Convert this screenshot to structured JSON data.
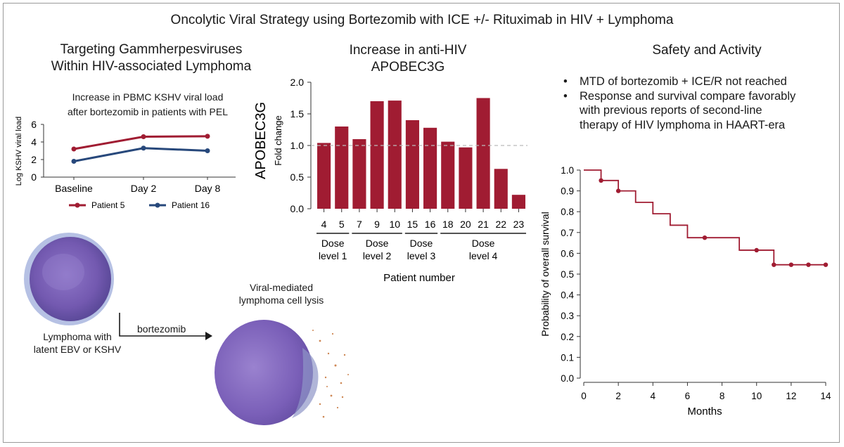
{
  "title": "Oncolytic Viral Strategy using Bortezomib with ICE +/- Rituximab in HIV + Lymphoma",
  "left": {
    "heading_line1": "Targeting Gammherpesviruses",
    "heading_line2": "Within HIV-associated Lymphoma",
    "chart_title_line1": "Increase in PBMC KSHV viral load",
    "chart_title_line2": "after bortezomib in patients with PEL",
    "cell_label_line1": "Lymphoma with",
    "cell_label_line2": "latent EBV or KSHV",
    "arrow_label": "bortezomib",
    "lysis_label_line1": "Viral-mediated",
    "lysis_label_line2": "lymphoma cell lysis"
  },
  "middle": {
    "heading_line1": "Increase in anti-HIV",
    "heading_line2": "APOBEC3G",
    "dose_groups": [
      {
        "line1": "Dose",
        "line2": "level 1"
      },
      {
        "line1": "Dose",
        "line2": "level 2"
      },
      {
        "line1": "Dose",
        "line2": "level 3"
      },
      {
        "line1": "Dose",
        "line2": "level 4"
      }
    ]
  },
  "right": {
    "heading": "Safety and Activity",
    "bullets": [
      "MTD of bortezomib + ICE/R not reached",
      "Response and survival compare favorably",
      "with previous reports of second-line",
      "therapy of HIV lymphoma in HAART-era"
    ]
  },
  "colors": {
    "red": "#a01c32",
    "blue": "#27487b",
    "bar": "#a01c32",
    "cell": "#7a5fb8"
  },
  "chart_data": [
    {
      "type": "line",
      "title": "Increase in PBMC KSHV viral load after bortezomib in patients with PEL",
      "xlabel": "",
      "ylabel": "Log KSHV viral load",
      "categories": [
        "Baseline",
        "Day 2",
        "Day 8"
      ],
      "ylim": [
        0,
        6
      ],
      "yticks": [
        "0",
        "2",
        "4",
        "6"
      ],
      "legend": "bottom",
      "series": [
        {
          "name": "Patient 5",
          "color": "#a01c32",
          "values": [
            3.2,
            4.6,
            4.65
          ]
        },
        {
          "name": "Patient 16",
          "color": "#27487b",
          "values": [
            1.8,
            3.3,
            3.0
          ]
        }
      ]
    },
    {
      "type": "bar",
      "title": "Increase in anti-HIV APOBEC3G",
      "ylabel": "APOBEC3G",
      "ylabel2": "Fold change",
      "xlabel": "Patient number",
      "categories": [
        "4",
        "5",
        "7",
        "9",
        "10",
        "15",
        "16",
        "18",
        "20",
        "21",
        "22",
        "23"
      ],
      "values": [
        1.04,
        1.3,
        1.1,
        1.7,
        1.71,
        1.4,
        1.28,
        1.06,
        0.97,
        1.75,
        0.63,
        0.22
      ],
      "ylim": [
        0,
        2.0
      ],
      "yticks": [
        "0.0",
        "0.5",
        "1.0",
        "1.5",
        "2.0"
      ],
      "reference_line": 1.0
    },
    {
      "type": "line",
      "subtype": "kaplan-meier",
      "xlabel": "Months",
      "ylabel": "Probability of overall survival",
      "xlim": [
        0,
        14
      ],
      "ylim": [
        0,
        1.0
      ],
      "xticks": [
        "0",
        "2",
        "4",
        "6",
        "8",
        "10",
        "12",
        "14"
      ],
      "yticks": [
        "0.0",
        "0.1",
        "0.2",
        "0.3",
        "0.4",
        "0.5",
        "0.6",
        "0.7",
        "0.8",
        "0.9",
        "1.0"
      ],
      "steps": [
        {
          "x": 0,
          "y": 1.0
        },
        {
          "x": 1,
          "y": 0.95
        },
        {
          "x": 2,
          "y": 0.9
        },
        {
          "x": 3,
          "y": 0.845
        },
        {
          "x": 4,
          "y": 0.79
        },
        {
          "x": 5,
          "y": 0.735
        },
        {
          "x": 6,
          "y": 0.675
        },
        {
          "x": 9,
          "y": 0.615
        },
        {
          "x": 11,
          "y": 0.545
        },
        {
          "x": 14,
          "y": 0.545
        }
      ],
      "censored": [
        {
          "x": 1,
          "y": 0.95
        },
        {
          "x": 2,
          "y": 0.9
        },
        {
          "x": 7,
          "y": 0.675
        },
        {
          "x": 10,
          "y": 0.615
        },
        {
          "x": 11,
          "y": 0.545
        },
        {
          "x": 12,
          "y": 0.545
        },
        {
          "x": 13,
          "y": 0.545
        },
        {
          "x": 14,
          "y": 0.545
        }
      ]
    }
  ]
}
